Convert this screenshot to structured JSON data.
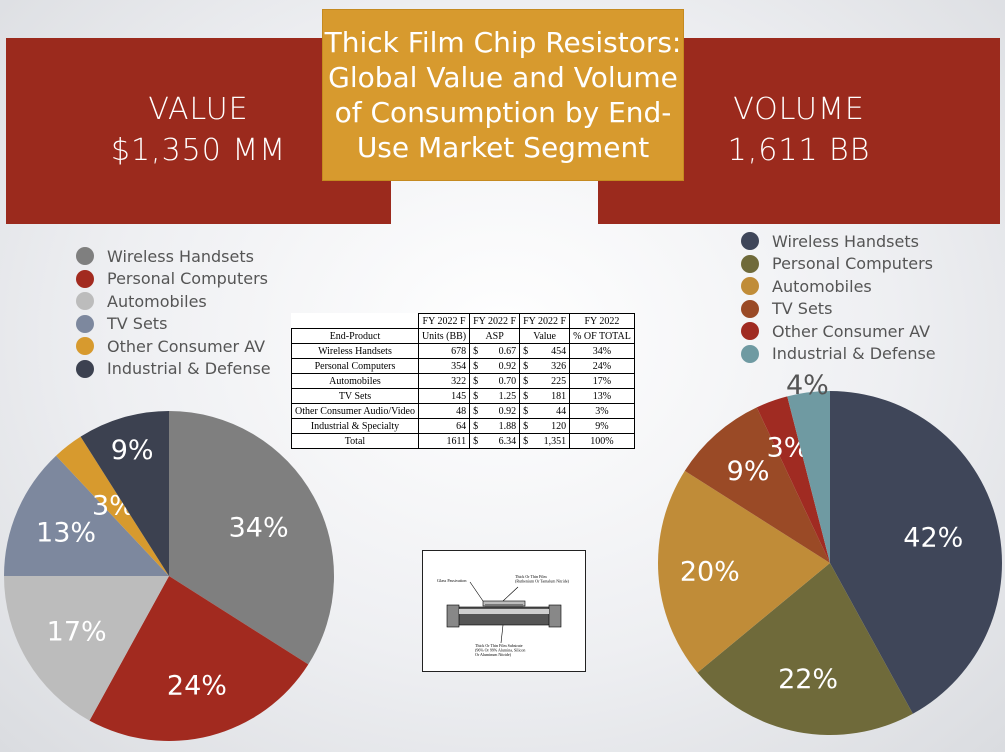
{
  "title": "Thick Film Chip Resistors:\nGlobal Value and Volume\nof Consumption by End-\nUse Market Segment",
  "value_banner": {
    "label": "VALUE",
    "amount": "$1,350 MM"
  },
  "volume_banner": {
    "label": "VOLUME",
    "amount": "1,611 BB"
  },
  "table": {
    "header1": [
      "",
      "FY 2022 F",
      "FY 2022 F",
      "FY 2022 F",
      "FY 2022"
    ],
    "header2": [
      "End-Product",
      "Units (BB)",
      "ASP",
      "Value",
      "% OF TOTAL"
    ],
    "rows": [
      [
        "Wireless Handsets",
        "678",
        "$",
        "0.67",
        "$",
        "454",
        "34%"
      ],
      [
        "Personal Computers",
        "354",
        "$",
        "0.92",
        "$",
        "326",
        "24%"
      ],
      [
        "Automobiles",
        "322",
        "$",
        "0.70",
        "$",
        "225",
        "17%"
      ],
      [
        "TV Sets",
        "145",
        "$",
        "1.25",
        "$",
        "181",
        "13%"
      ],
      [
        "Other Consumer Audio/Video",
        "48",
        "$",
        "0.92",
        "$",
        "44",
        "3%"
      ],
      [
        "Industrial & Specialty",
        "64",
        "$",
        "1.88",
        "$",
        "120",
        "9%"
      ],
      [
        "Total",
        "1611",
        "$",
        "6.34",
        "$",
        "1,351",
        "100%"
      ]
    ]
  },
  "diagram": {
    "glass_label": "Glass Passivation",
    "film_label": "Thick Or Thin Film\n(Ruthenium Or Tantalum Nitride)",
    "substrate_label": "Thick Or Thin Film Substrate\n(96% Or 99% Alumina, Silicon\nOr Aluminum Nitride)"
  },
  "chart_data": [
    {
      "type": "pie",
      "name": "Value",
      "categories": [
        "Wireless Handsets",
        "Personal Computers",
        "Automobiles",
        "TV Sets",
        "Other Consumer AV",
        "Industrial & Defense"
      ],
      "values": [
        34,
        24,
        17,
        13,
        3,
        9
      ],
      "labels": [
        "34%",
        "24%",
        "17%",
        "13%",
        "3%",
        "9%"
      ],
      "colors": [
        "#7f7f7f",
        "#a22a1f",
        "#bcbcbc",
        "#7d889e",
        "#d79a2e",
        "#3c4150"
      ],
      "legend_placement": "top-left"
    },
    {
      "type": "pie",
      "name": "Volume",
      "categories": [
        "Wireless Handsets",
        "Personal Computers",
        "Automobiles",
        "TV Sets",
        "Other Consumer AV",
        "Industrial & Defense"
      ],
      "values": [
        42,
        22,
        20,
        9,
        3,
        4
      ],
      "labels": [
        "42%",
        "22%",
        "20%",
        "9%",
        "3%",
        "4%"
      ],
      "colors": [
        "#3f4659",
        "#6f6a3a",
        "#c08c38",
        "#9a4a26",
        "#a02b22",
        "#6f9aa2"
      ],
      "legend_placement": "top-right"
    }
  ]
}
